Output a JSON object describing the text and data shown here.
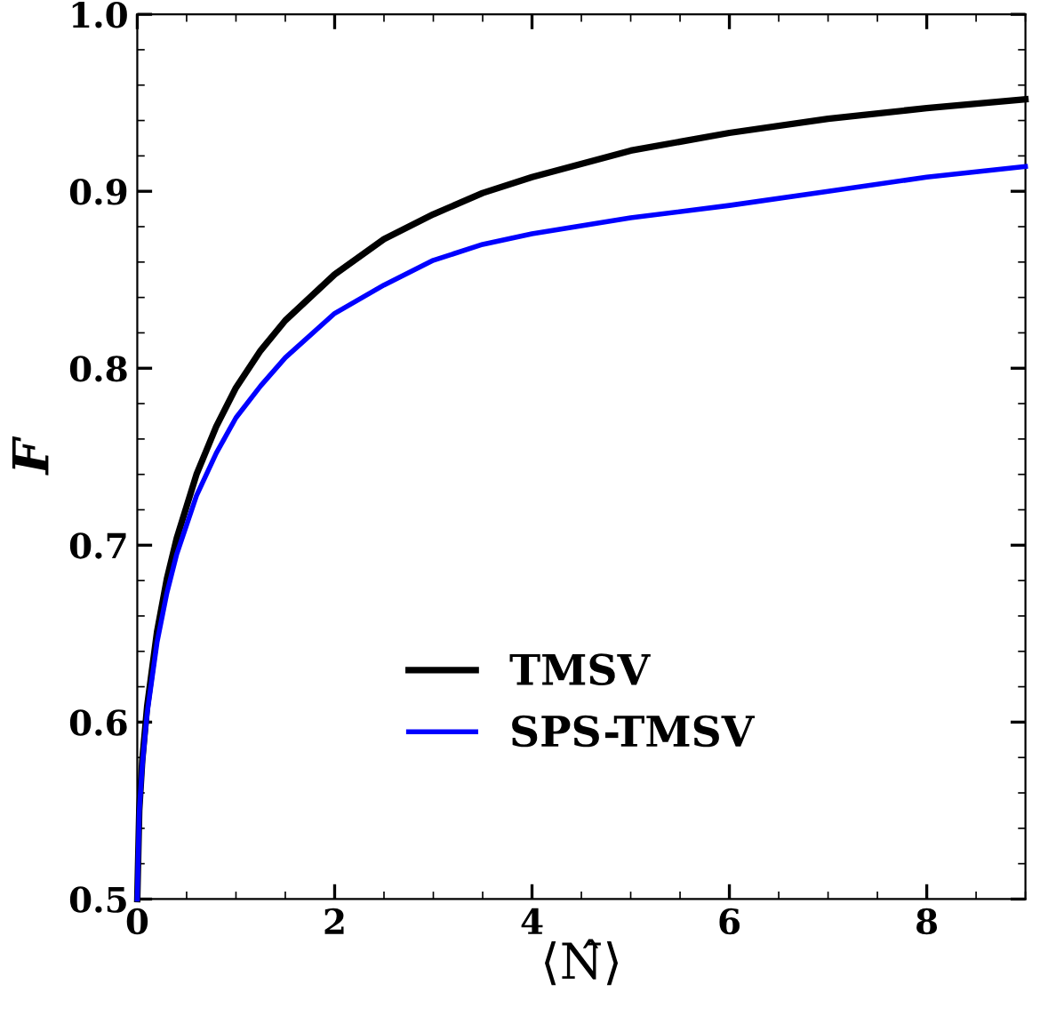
{
  "chart_data": {
    "type": "line",
    "xlabel": "⟨N̂⟩",
    "ylabel": "F",
    "xlim": [
      0,
      9
    ],
    "ylim": [
      0.5,
      1.0
    ],
    "xticks": [
      0,
      2,
      4,
      6,
      8
    ],
    "yticks": [
      0.5,
      0.6,
      0.7,
      0.8,
      0.9,
      {
        "value": 1,
        "label": "1.0"
      }
    ],
    "grid": false,
    "legend": "bottom",
    "marker": "none",
    "line_style": "solid",
    "series": [
      {
        "name": "TMSV",
        "color": "#000000",
        "x": [
          0,
          0.02,
          0.05,
          0.1,
          0.2,
          0.3,
          0.4,
          0.6,
          0.8,
          1,
          1.25,
          1.5,
          2,
          2.5,
          3,
          3.5,
          4,
          5,
          6,
          7,
          8,
          9
        ],
        "values": [
          0.5,
          0.55,
          0.578,
          0.609,
          0.651,
          0.681,
          0.704,
          0.74,
          0.767,
          0.789,
          0.81,
          0.827,
          0.853,
          0.873,
          0.887,
          0.899,
          0.908,
          0.923,
          0.933,
          0.941,
          0.947,
          0.952
        ]
      },
      {
        "name": "SPS-TMSV",
        "color": "#0000ff",
        "x": [
          0,
          0.02,
          0.05,
          0.1,
          0.2,
          0.3,
          0.4,
          0.6,
          0.8,
          1,
          1.25,
          1.5,
          2,
          2.5,
          3,
          3.5,
          4,
          5,
          6,
          7,
          8,
          9
        ],
        "values": [
          0.5,
          0.549,
          0.575,
          0.605,
          0.645,
          0.673,
          0.695,
          0.728,
          0.752,
          0.772,
          0.79,
          0.806,
          0.831,
          0.847,
          0.861,
          0.87,
          0.876,
          0.885,
          0.892,
          0.9,
          0.908,
          0.914
        ]
      }
    ]
  }
}
